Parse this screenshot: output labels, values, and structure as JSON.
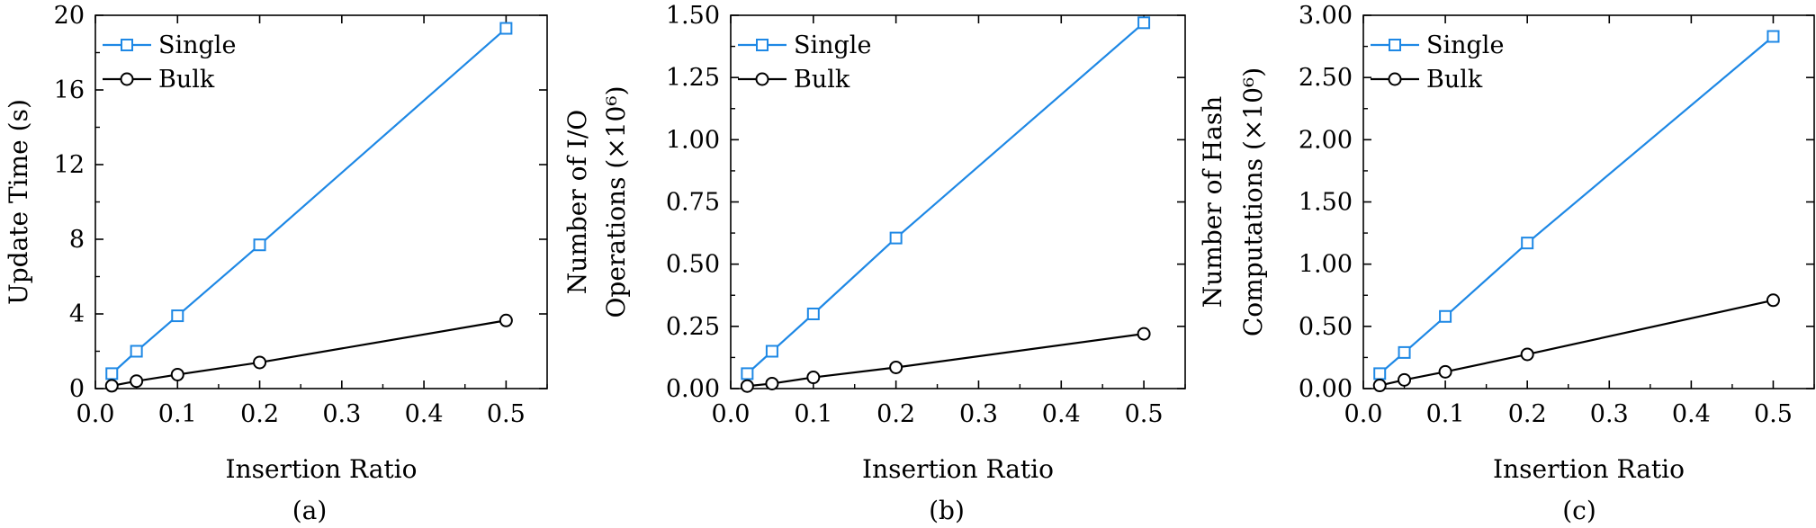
{
  "chart_data": [
    {
      "type": "line",
      "caption": "(a)",
      "xlabel": "Insertion Ratio",
      "ylabel_lines": [
        "Update Time (s)"
      ],
      "xlim": [
        0,
        0.55
      ],
      "ylim": [
        0,
        20
      ],
      "xticks": [
        0.0,
        0.1,
        0.2,
        0.3,
        0.4,
        0.5
      ],
      "xtick_labels": [
        "0.0",
        "0.1",
        "0.2",
        "0.3",
        "0.4",
        "0.5"
      ],
      "yticks": [
        0,
        4,
        8,
        12,
        16,
        20
      ],
      "ytick_labels": [
        "0",
        "4",
        "8",
        "12",
        "16",
        "20"
      ],
      "legend_position": "top-left",
      "grid": false,
      "x": [
        0.02,
        0.05,
        0.1,
        0.2,
        0.5
      ],
      "series": [
        {
          "name": "Single",
          "marker": "square",
          "color": "#1E88E5",
          "values": [
            0.8,
            2.0,
            3.9,
            7.7,
            19.3
          ]
        },
        {
          "name": "Bulk",
          "marker": "circle",
          "color": "#000000",
          "values": [
            0.15,
            0.4,
            0.75,
            1.4,
            3.65
          ]
        }
      ]
    },
    {
      "type": "line",
      "caption": "(b)",
      "xlabel": "Insertion Ratio",
      "ylabel_lines": [
        "Number of I/O",
        "Operations (×10⁶)"
      ],
      "xlim": [
        0,
        0.55
      ],
      "ylim": [
        0,
        1.5
      ],
      "xticks": [
        0.0,
        0.1,
        0.2,
        0.3,
        0.4,
        0.5
      ],
      "xtick_labels": [
        "0.0",
        "0.1",
        "0.2",
        "0.3",
        "0.4",
        "0.5"
      ],
      "yticks": [
        0,
        0.25,
        0.5,
        0.75,
        1.0,
        1.25,
        1.5
      ],
      "ytick_labels": [
        "0.00",
        "0.25",
        "0.50",
        "0.75",
        "1.00",
        "1.25",
        "1.50"
      ],
      "legend_position": "top-left",
      "grid": false,
      "x": [
        0.02,
        0.05,
        0.1,
        0.2,
        0.5
      ],
      "series": [
        {
          "name": "Single",
          "marker": "square",
          "color": "#1E88E5",
          "values": [
            0.06,
            0.15,
            0.3,
            0.605,
            1.47
          ]
        },
        {
          "name": "Bulk",
          "marker": "circle",
          "color": "#000000",
          "values": [
            0.01,
            0.02,
            0.045,
            0.085,
            0.22
          ]
        }
      ]
    },
    {
      "type": "line",
      "caption": "(c)",
      "xlabel": "Insertion Ratio",
      "ylabel_lines": [
        "Number of Hash",
        "Computations (×10⁶)"
      ],
      "xlim": [
        0,
        0.55
      ],
      "ylim": [
        0,
        3.0
      ],
      "xticks": [
        0.0,
        0.1,
        0.2,
        0.3,
        0.4,
        0.5
      ],
      "xtick_labels": [
        "0.0",
        "0.1",
        "0.2",
        "0.3",
        "0.4",
        "0.5"
      ],
      "yticks": [
        0,
        0.5,
        1.0,
        1.5,
        2.0,
        2.5,
        3.0
      ],
      "ytick_labels": [
        "0.00",
        "0.50",
        "1.00",
        "1.50",
        "2.00",
        "2.50",
        "3.00"
      ],
      "legend_position": "top-left",
      "grid": false,
      "x": [
        0.02,
        0.05,
        0.1,
        0.2,
        0.5
      ],
      "series": [
        {
          "name": "Single",
          "marker": "square",
          "color": "#1E88E5",
          "values": [
            0.12,
            0.29,
            0.58,
            1.17,
            2.83
          ]
        },
        {
          "name": "Bulk",
          "marker": "circle",
          "color": "#000000",
          "values": [
            0.025,
            0.07,
            0.135,
            0.275,
            0.71
          ]
        }
      ]
    }
  ]
}
